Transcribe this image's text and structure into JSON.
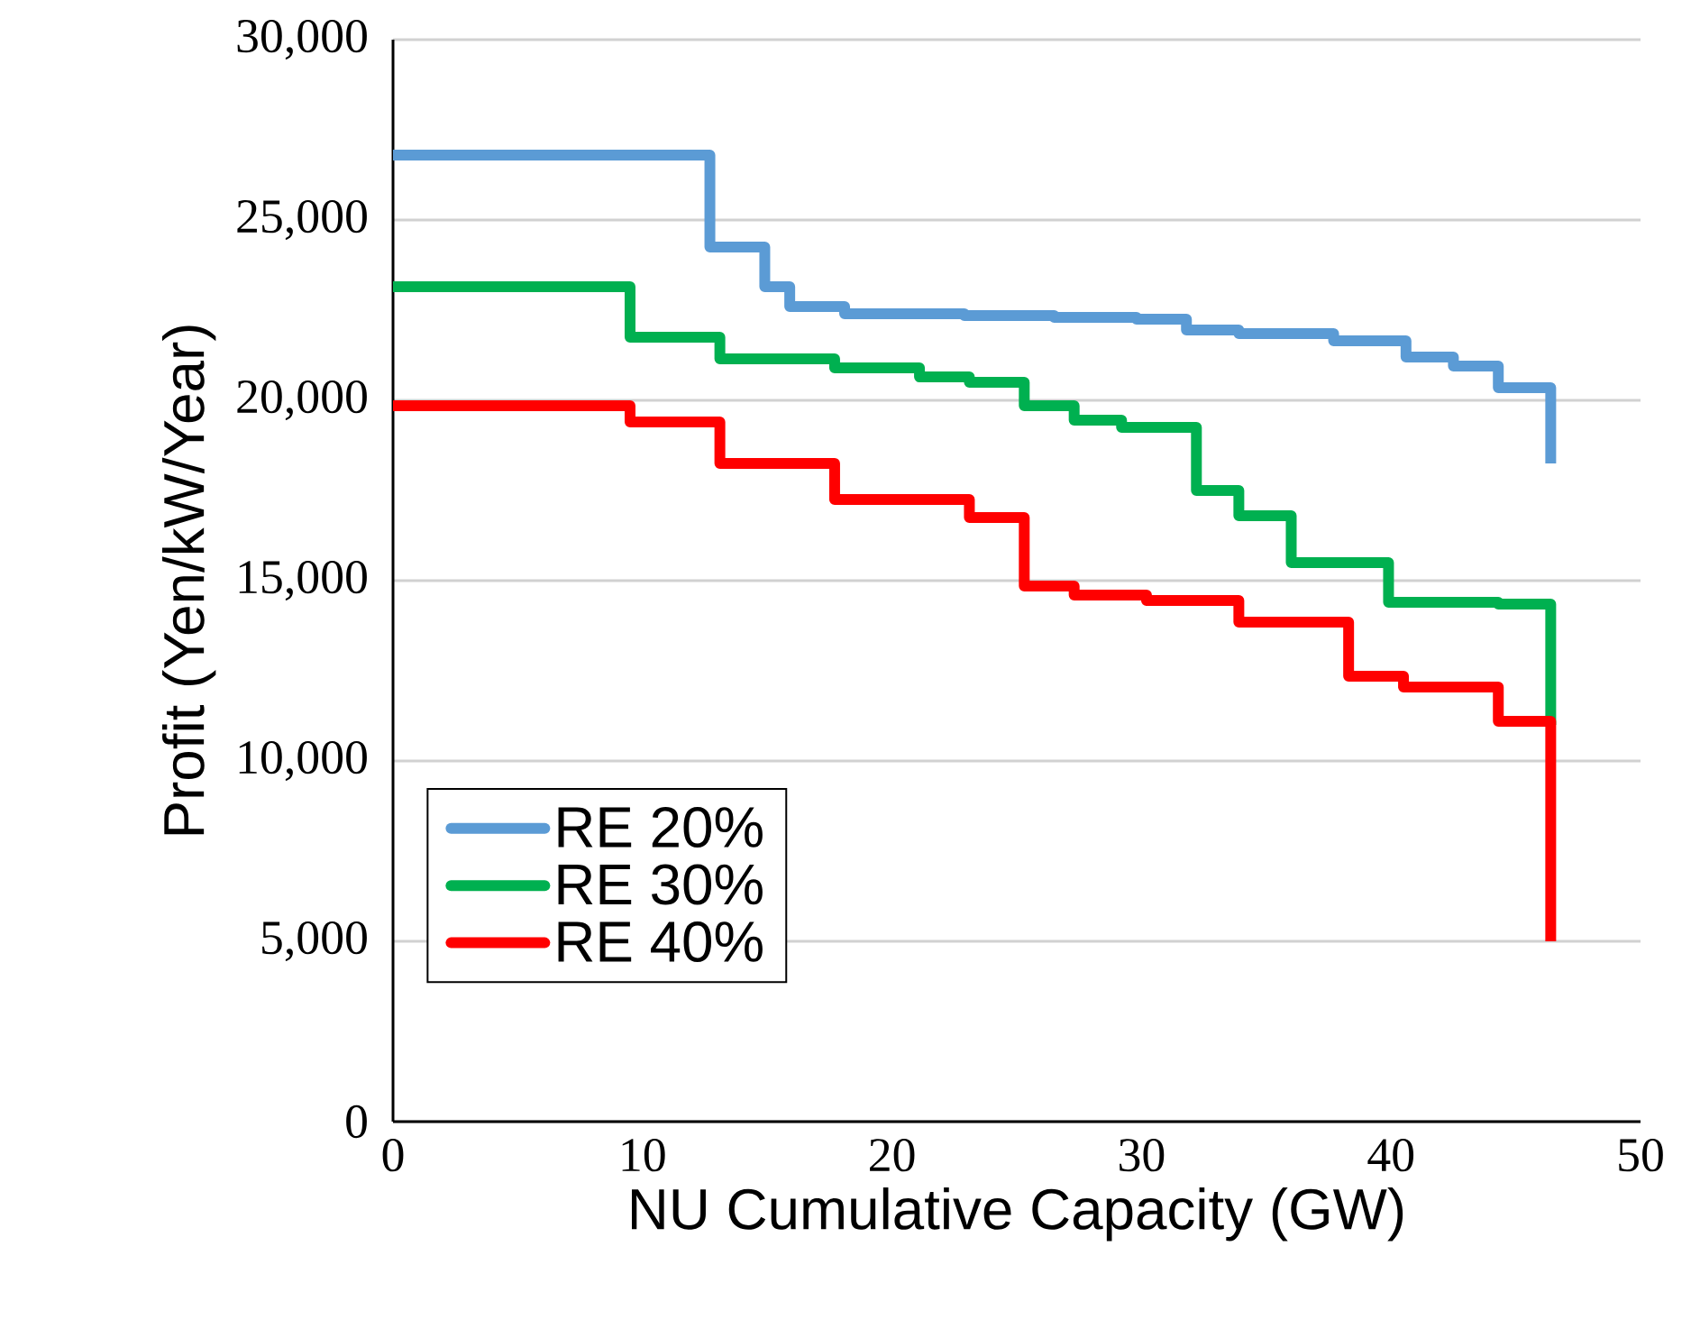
{
  "chart_data": {
    "type": "step",
    "xlabel": "NU Cumulative Capacity (GW)",
    "ylabel": "Profit (Yen/kW/Year)",
    "xlim": [
      0,
      50
    ],
    "xticks": [
      0,
      10,
      20,
      30,
      40,
      50
    ],
    "ylim": [
      0,
      30000
    ],
    "yticks": [
      {
        "value": 0,
        "label": "0"
      },
      {
        "value": 5000,
        "label": "5,000"
      },
      {
        "value": 10000,
        "label": "10,000"
      },
      {
        "value": 15000,
        "label": "15,000"
      },
      {
        "value": 20000,
        "label": "20,000"
      },
      {
        "value": 25000,
        "label": "25,000"
      },
      {
        "value": 30000,
        "label": "30,000"
      }
    ],
    "grid": "y",
    "legend": "bottom left",
    "line_style": "solid",
    "series": [
      {
        "name": "RE 20%",
        "color": "#5b9bd5",
        "x": [
          0,
          12.7,
          14.9,
          15.9,
          18.1,
          22.9,
          26.5,
          29.8,
          31.8,
          33.9,
          37.7,
          40.6,
          42.5,
          44.3,
          46.4
        ],
        "values": [
          26800,
          24250,
          23150,
          22600,
          22400,
          22350,
          22300,
          22250,
          21950,
          21850,
          21650,
          21200,
          20950,
          20350,
          18250
        ]
      },
      {
        "name": "RE 30%",
        "color": "#00b050",
        "x": [
          0,
          9.5,
          13.1,
          17.7,
          21.1,
          23.1,
          25.3,
          27.3,
          29.2,
          32.2,
          33.9,
          36.0,
          39.9,
          44.3,
          46.4
        ],
        "values": [
          23150,
          21750,
          21150,
          20900,
          20650,
          20500,
          19850,
          19450,
          19250,
          17500,
          16800,
          15500,
          14400,
          14350,
          11000
        ]
      },
      {
        "name": "RE 40%",
        "color": "#ff0000",
        "x": [
          0,
          9.5,
          13.1,
          17.7,
          23.1,
          25.3,
          27.3,
          30.2,
          33.9,
          38.3,
          40.5,
          44.3,
          46.4
        ],
        "values": [
          19850,
          19400,
          18250,
          17250,
          16750,
          14850,
          14600,
          14450,
          13850,
          12350,
          12050,
          11100,
          5000
        ]
      }
    ]
  }
}
